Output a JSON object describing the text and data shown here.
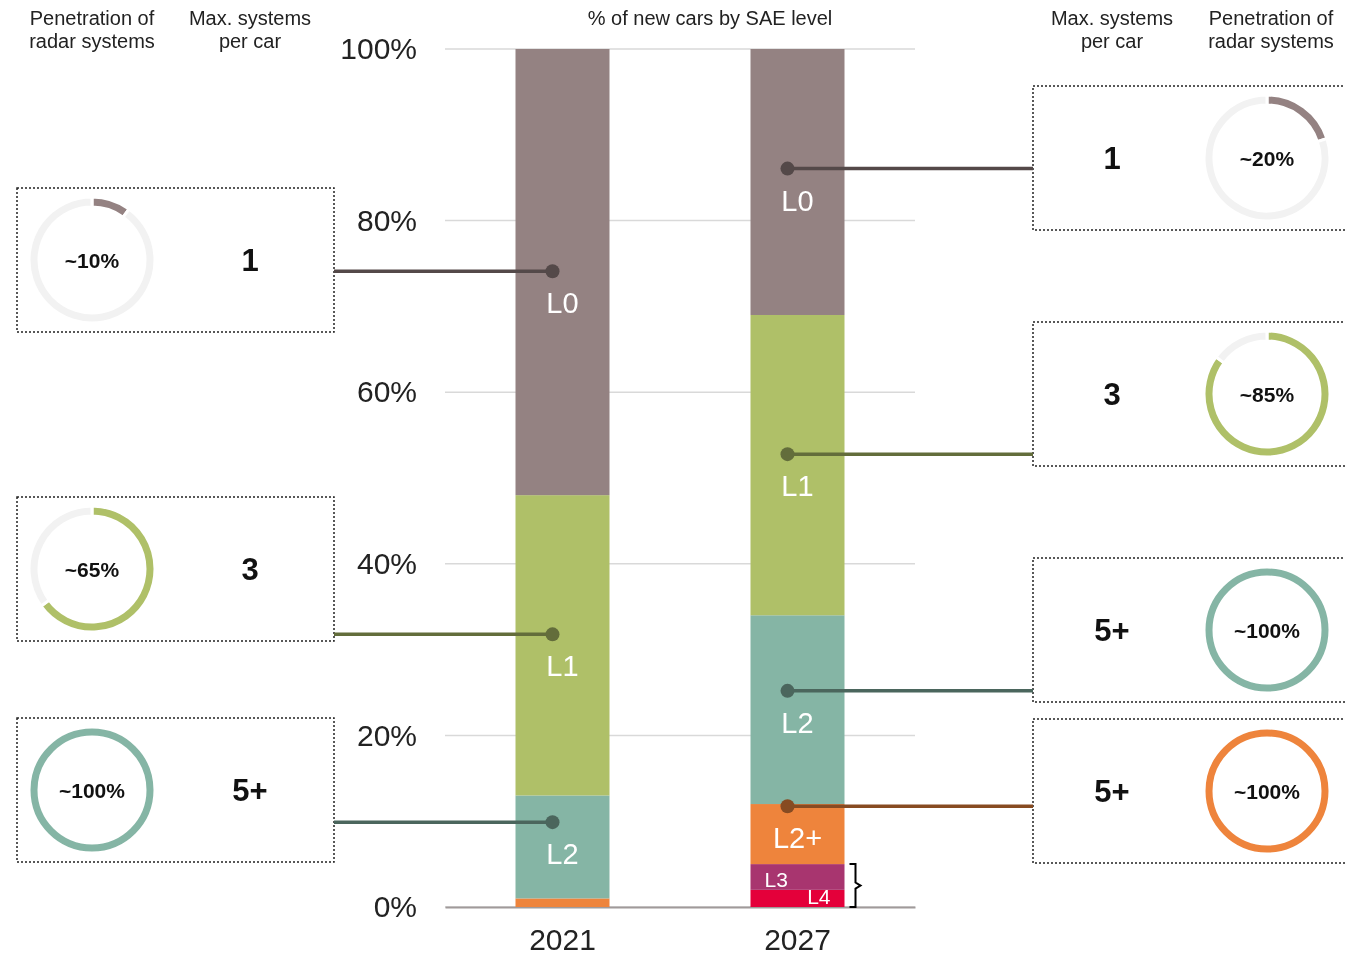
{
  "chart_data": [
    {
      "type": "bar",
      "title": "% of new cars by SAE level",
      "categories": [
        "2021",
        "2027"
      ],
      "stacked": true,
      "series": [
        {
          "name": "L4",
          "color": "#e4003a",
          "values": [
            0,
            2
          ]
        },
        {
          "name": "L3",
          "color": "#a8356f",
          "values": [
            0,
            3
          ]
        },
        {
          "name": "L2+",
          "color": "#ee843c",
          "values": [
            1,
            7
          ]
        },
        {
          "name": "L2",
          "color": "#85b5a5",
          "values": [
            12,
            22
          ]
        },
        {
          "name": "L1",
          "color": "#afc068",
          "values": [
            35,
            35
          ]
        },
        {
          "name": "L0",
          "color": "#948282",
          "values": [
            52,
            31
          ]
        }
      ],
      "ylim": [
        0,
        100
      ],
      "yticks": [
        {
          "value": 0,
          "label": "0%"
        },
        {
          "value": 20,
          "label": "20%"
        },
        {
          "value": 40,
          "label": "40%"
        },
        {
          "value": 60,
          "label": "60%"
        },
        {
          "value": 80,
          "label": "80%"
        },
        {
          "value": 100,
          "label": "100%"
        }
      ],
      "grid": "y",
      "annotations": [
        "Penetration of radar systems",
        "Max. systems per car",
        "Max. systems per car",
        "Penetration of radar systems"
      ]
    },
    {
      "type": "donut",
      "categories": [
        null,
        null
      ],
      "values": [
        10,
        90
      ],
      "colors": [
        "#948282",
        "#f2f2f2"
      ],
      "annotations": [
        "~10%",
        "1"
      ]
    },
    {
      "type": "donut",
      "categories": [
        null,
        null
      ],
      "values": [
        65,
        35
      ],
      "colors": [
        "#afc068",
        "#f2f2f2"
      ],
      "annotations": [
        "~65%",
        "3"
      ]
    },
    {
      "type": "donut",
      "categories": [
        null,
        null
      ],
      "values": [
        100,
        0
      ],
      "colors": [
        "#85b5a5",
        "#f2f2f2"
      ],
      "annotations": [
        "~100%",
        "5+"
      ]
    },
    {
      "type": "donut",
      "categories": [
        null,
        null
      ],
      "values": [
        20,
        80
      ],
      "colors": [
        "#948282",
        "#f2f2f2"
      ],
      "annotations": [
        "~20%",
        "1"
      ]
    },
    {
      "type": "donut",
      "categories": [
        null,
        null
      ],
      "values": [
        85,
        15
      ],
      "colors": [
        "#afc068",
        "#f2f2f2"
      ],
      "annotations": [
        "~85%",
        "3"
      ]
    },
    {
      "type": "donut",
      "categories": [
        null,
        null
      ],
      "values": [
        100,
        0
      ],
      "colors": [
        "#85b5a5",
        "#f2f2f2"
      ],
      "annotations": [
        "~100%",
        "5+"
      ]
    },
    {
      "type": "donut",
      "categories": [
        null,
        null
      ],
      "values": [
        100,
        0
      ],
      "colors": [
        "#ee843c",
        "#f2f2f2"
      ],
      "annotations": [
        "~100%",
        "5+"
      ]
    }
  ]
}
